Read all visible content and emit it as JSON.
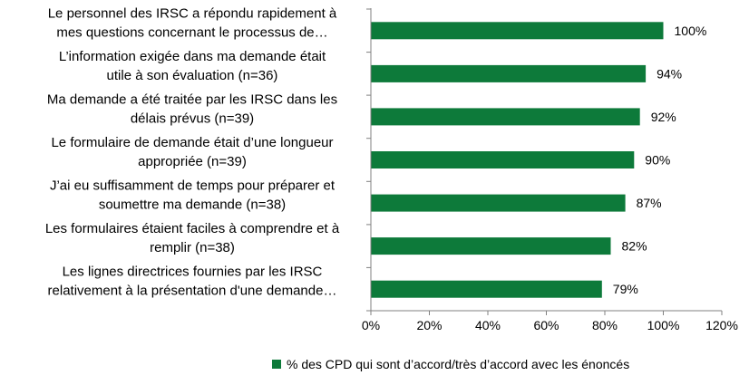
{
  "chart_data": {
    "type": "bar",
    "orientation": "horizontal",
    "categories": [
      [
        "Le personnel des IRSC a répondu rapidement à",
        "mes questions concernant le processus de…"
      ],
      [
        "L’information exigée dans ma demande était",
        "utile à son évaluation (n=36)"
      ],
      [
        "Ma demande a été traitée par les IRSC dans les",
        "délais prévus (n=39)"
      ],
      [
        "Le formulaire de demande était  d’une longueur",
        "appropriée (n=39)"
      ],
      [
        "J’ai eu suffisamment de temps pour préparer et",
        "soumettre ma demande (n=38)"
      ],
      [
        "Les formulaires étaient faciles à comprendre et à",
        "remplir (n=38)"
      ],
      [
        "Les lignes directrices fournies par les IRSC",
        "relativement à la présentation d'une demande…"
      ]
    ],
    "series": [
      {
        "name": "% des CPD qui sont d’accord/très d’accord avec les énoncés",
        "values": [
          100,
          94,
          92,
          90,
          87,
          82,
          79
        ],
        "data_labels": [
          "100%",
          "94%",
          "92%",
          "90%",
          "87%",
          "82%",
          "79%"
        ],
        "color": "#0d7a3a"
      }
    ],
    "x_ticks": [
      "0%",
      "20%",
      "40%",
      "60%",
      "80%",
      "100%",
      "120%"
    ],
    "xlim": [
      0,
      120
    ],
    "grid": false,
    "legend_position": "bottom"
  }
}
